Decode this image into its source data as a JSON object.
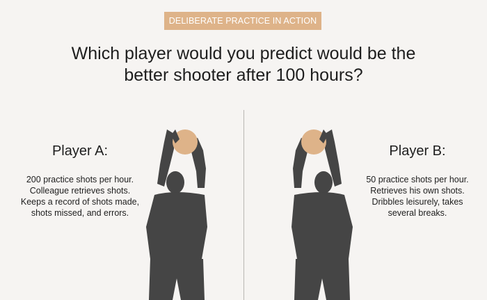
{
  "header": {
    "tag": "DELIBERATE PRACTICE IN ACTION",
    "question_line1": "Which player would you predict would be the",
    "question_line2": "better shooter after 100 hours?"
  },
  "players": [
    {
      "title": "Player A:",
      "lines": [
        "200 practice shots per hour.",
        "Colleague retrieves shots.",
        "Keeps a record of shots made,",
        "shots missed, and errors."
      ],
      "icon": "basketball-shooter-icon"
    },
    {
      "title": "Player B:",
      "lines": [
        "50 practice shots per hour.",
        "Retrieves his own shots.",
        "Dribbles leisurely, takes",
        "several breaks."
      ],
      "icon": "basketball-shooter-icon"
    }
  ],
  "colors": {
    "background": "#f6f4f2",
    "tag_background": "#deb389",
    "silhouette": "#454545",
    "ball": "#deb389",
    "divider": "#b9b6b3"
  }
}
